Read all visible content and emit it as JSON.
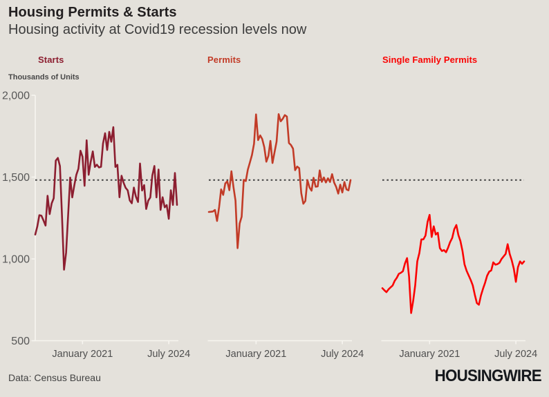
{
  "header": {
    "title": "Housing Permits & Starts",
    "subtitle": "Housing activity at Covid19 recession levels now"
  },
  "footer": {
    "source": "Data: Census Bureau",
    "logo": "HOUSINGWIRE"
  },
  "colors": {
    "background": "#e4e1db",
    "title_text": "#221f20",
    "subtitle_text": "#3c3c3c",
    "axis_line": "#f7f5f0",
    "tick_text": "#4f4f4f",
    "y_label_text": "#575757",
    "reference_line": "#3f3f3f",
    "starts_line": "#8c1e30",
    "permits_line": "#c23b27",
    "single_family_line": "#fa0202"
  },
  "chart_data": {
    "type": "line",
    "title": "Housing Permits & Starts",
    "subtitle": "Housing activity at Covid19 recession levels now",
    "unit_label": "Thousands of Units",
    "ylim": [
      500,
      2000
    ],
    "grid": false,
    "legend_position": "panel-headers-top",
    "y_axis": {
      "ticks": [
        {
          "label": "2,000",
          "value": 2000
        },
        {
          "label": "1,500",
          "value": 1500
        },
        {
          "label": "1,000",
          "value": 1000
        },
        {
          "label": "500",
          "value": 500
        }
      ]
    },
    "x_ticks": [
      {
        "label": "January 2021",
        "index": 23
      },
      {
        "label": "July 2024",
        "index": 65
      }
    ],
    "reference_line": {
      "value": 1482,
      "style": "dotted",
      "color": "#3f3f3f"
    },
    "panels": [
      {
        "label": "Starts",
        "color": "#8c1e30",
        "values": [
          1149,
          1199,
          1267,
          1264,
          1235,
          1204,
          1386,
          1274,
          1340,
          1371,
          1601,
          1617,
          1567,
          1269,
          934,
          1038,
          1265,
          1497,
          1376,
          1448,
          1514,
          1551,
          1661,
          1625,
          1447,
          1725,
          1514,
          1594,
          1657,
          1562,
          1576,
          1559,
          1563,
          1706,
          1768,
          1666,
          1777,
          1716,
          1805,
          1562,
          1575,
          1377,
          1508,
          1465,
          1434,
          1419,
          1357,
          1340,
          1436,
          1380,
          1348,
          1583,
          1418,
          1451,
          1305,
          1356,
          1376,
          1510,
          1568,
          1376,
          1546,
          1299,
          1377,
          1315,
          1329,
          1245,
          1420,
          1330,
          1525,
          1330
        ]
      },
      {
        "label": "Permits",
        "color": "#c23b27",
        "values": [
          1287,
          1288,
          1290,
          1299,
          1232,
          1317,
          1425,
          1391,
          1461,
          1474,
          1420,
          1536,
          1438,
          1356,
          1066,
          1216,
          1258,
          1483,
          1476,
          1545,
          1589,
          1635,
          1704,
          1883,
          1726,
          1755,
          1733,
          1683,
          1594,
          1630,
          1721,
          1586,
          1653,
          1717,
          1885,
          1841,
          1857,
          1879,
          1870,
          1708,
          1696,
          1674,
          1542,
          1564,
          1555,
          1402,
          1337,
          1354,
          1482,
          1437,
          1417,
          1496,
          1441,
          1443,
          1541,
          1471,
          1498,
          1467,
          1493,
          1470,
          1518,
          1467,
          1440,
          1399,
          1454,
          1406,
          1470,
          1425,
          1419,
          1482
        ]
      },
      {
        "label": "Single Family Permits",
        "color": "#fa0202",
        "values": [
          821,
          808,
          797,
          814,
          826,
          838,
          866,
          884,
          909,
          915,
          925,
          972,
          1005,
          892,
          669,
          745,
          839,
          985,
          1036,
          1119,
          1120,
          1143,
          1226,
          1269,
          1134,
          1199,
          1149,
          1160,
          1066,
          1048,
          1054,
          1041,
          1069,
          1103,
          1128,
          1182,
          1207,
          1147,
          1109,
          1048,
          967,
          928,
          899,
          871,
          839,
          781,
          730,
          720,
          777,
          818,
          855,
          897,
          922,
          930,
          979,
          965,
          968,
          976,
          999,
          1015,
          1031,
          1090,
          1030,
          990,
          940,
          860,
          950,
          985,
          970,
          985
        ]
      }
    ]
  }
}
